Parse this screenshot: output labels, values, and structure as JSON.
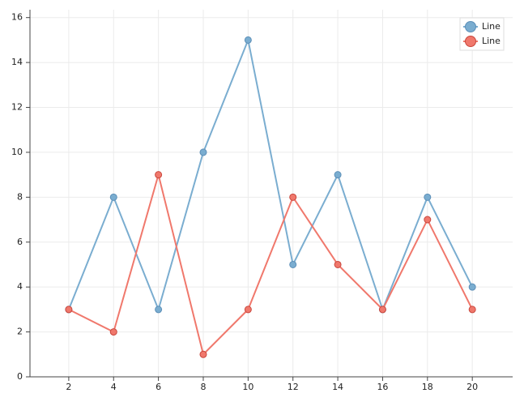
{
  "chart_data": {
    "type": "line",
    "x": [
      2,
      4,
      6,
      8,
      10,
      12,
      14,
      16,
      18,
      20
    ],
    "series": [
      {
        "name": "Line",
        "color": "#7aadd0",
        "values": [
          3,
          8,
          3,
          10,
          15,
          5,
          9,
          3,
          8,
          4
        ]
      },
      {
        "name": "Line",
        "color": "#f0786c",
        "values": [
          3,
          2,
          9,
          1,
          3,
          8,
          5,
          3,
          7,
          3
        ]
      }
    ],
    "xlim": [
      0.27,
      21.8
    ],
    "ylim": [
      0,
      16.35
    ],
    "xticks": [
      2,
      4,
      6,
      8,
      10,
      12,
      14,
      16,
      18,
      20
    ],
    "yticks": [
      0,
      2,
      4,
      6,
      8,
      10,
      12,
      14,
      16
    ],
    "grid": true,
    "legend": "top-right"
  }
}
